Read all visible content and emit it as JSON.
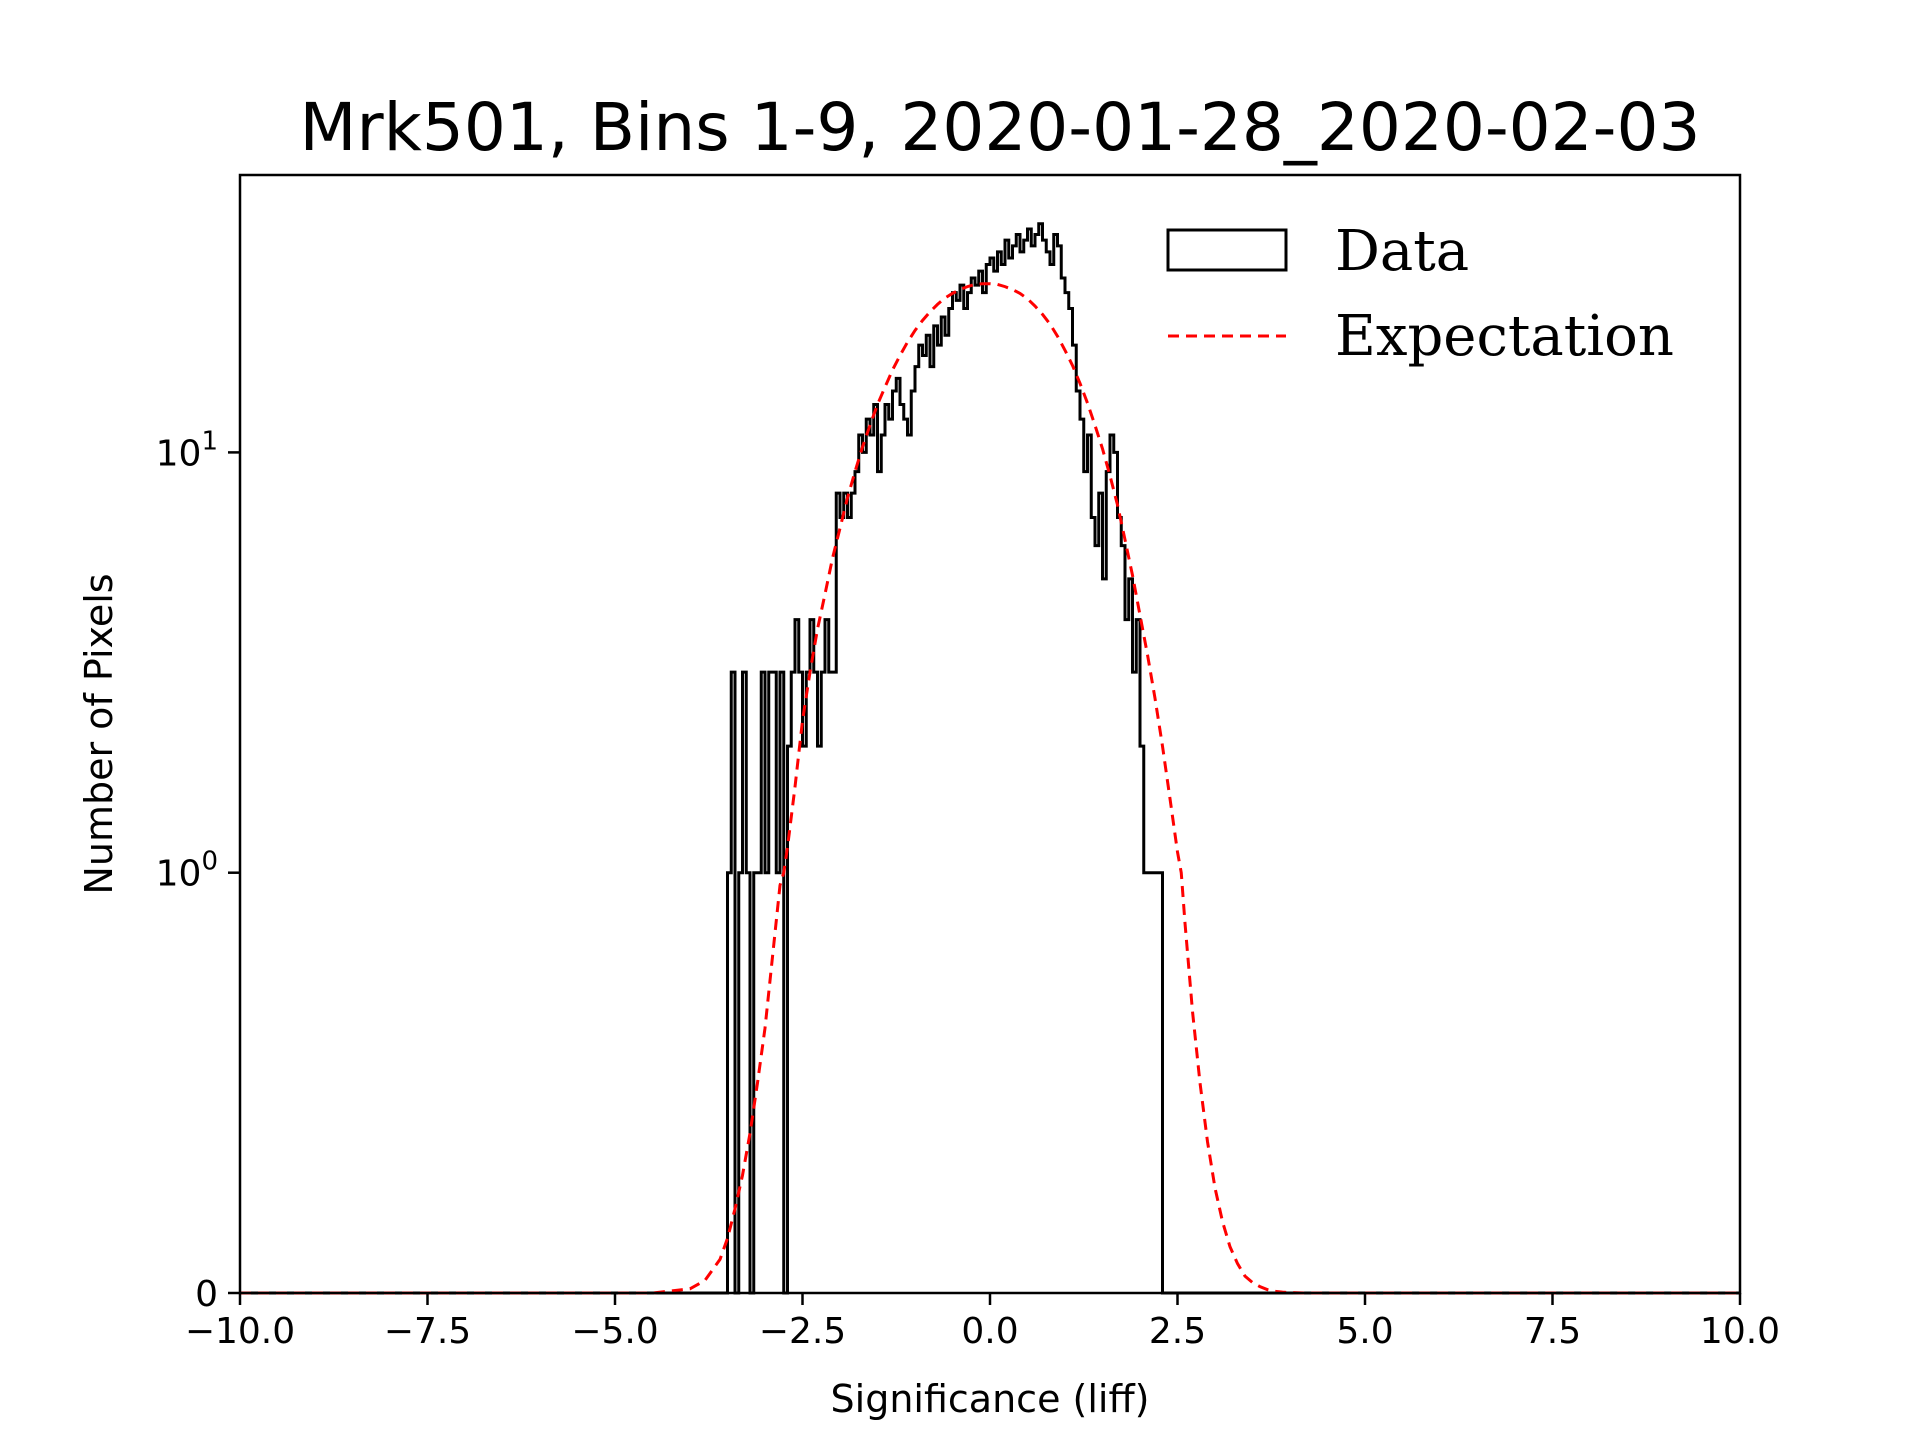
{
  "chart_data": {
    "type": "histogram",
    "title": "Mrk501, Bins 1-9, 2020-01-28_2020-02-03",
    "xlabel": "Significance (liff)",
    "ylabel": "Number of Pixels",
    "xlim": [
      -10.0,
      10.0
    ],
    "yscale": "symlog",
    "symlog_linthresh": 1,
    "xticks": [
      -10.0,
      -7.5,
      -5.0,
      -2.5,
      0.0,
      2.5,
      5.0,
      7.5,
      10.0
    ],
    "xtick_labels": [
      "−10.0",
      "−7.5",
      "−5.0",
      "−2.5",
      "0.0",
      "2.5",
      "5.0",
      "7.5",
      "10.0"
    ],
    "yticks": [
      {
        "value": 0,
        "base": "0",
        "exp": ""
      },
      {
        "value": 1,
        "base": "10",
        "exp": "0"
      },
      {
        "value": 10,
        "base": "10",
        "exp": "1"
      }
    ],
    "legend": {
      "position": "top-right",
      "entries": [
        {
          "label": "Data",
          "style": "step",
          "color": "#000000"
        },
        {
          "label": "Expectation",
          "style": "dashed",
          "color": "#ff0000"
        }
      ]
    },
    "series": [
      {
        "name": "Data",
        "type": "step",
        "color": "#000000",
        "bin_width": 0.05,
        "bin_edges_start": -3.55,
        "counts": [
          0,
          1,
          3,
          0,
          1,
          3,
          1,
          0,
          1,
          1,
          3,
          1,
          3,
          3,
          1,
          3,
          0,
          2,
          3,
          4,
          3,
          2,
          3,
          4,
          3,
          2,
          3,
          4,
          3,
          3,
          8,
          7,
          8,
          7,
          8,
          9,
          11,
          10,
          12,
          11,
          13,
          9,
          11,
          13,
          12,
          14,
          15,
          13,
          12,
          11,
          14,
          16,
          18,
          17,
          19,
          16,
          20,
          18,
          21,
          19,
          22,
          24,
          23,
          25,
          22,
          24,
          26,
          25,
          27,
          24,
          28,
          29,
          27,
          30,
          28,
          32,
          29,
          31,
          33,
          30,
          32,
          34,
          31,
          33,
          35,
          32,
          30,
          28,
          33,
          31,
          26,
          24,
          22,
          18,
          14,
          12,
          9,
          11,
          7,
          6,
          8,
          5,
          9,
          11,
          10,
          7,
          6,
          4,
          5,
          3,
          4,
          2,
          1,
          1,
          1,
          1,
          1,
          0
        ]
      },
      {
        "name": "Expectation",
        "type": "line",
        "style": "dashed",
        "color": "#ff0000",
        "x": [
          -10,
          -5,
          -4.5,
          -4,
          -3.8,
          -3.6,
          -3.5,
          -3.4,
          -3.3,
          -3.2,
          -3.1,
          -3.0,
          -2.9,
          -2.8,
          -2.75,
          -2.7,
          -2.6,
          -2.5,
          -2.4,
          -2.3,
          -2.2,
          -2.1,
          -2.0,
          -1.9,
          -1.8,
          -1.7,
          -1.6,
          -1.5,
          -1.4,
          -1.3,
          -1.2,
          -1.1,
          -1.0,
          -0.9,
          -0.8,
          -0.7,
          -0.6,
          -0.5,
          -0.4,
          -0.3,
          -0.2,
          -0.1,
          0.0,
          0.1,
          0.2,
          0.3,
          0.4,
          0.5,
          0.6,
          0.7,
          0.8,
          0.9,
          1.0,
          1.1,
          1.2,
          1.3,
          1.4,
          1.5,
          1.6,
          1.7,
          1.8,
          1.9,
          2.0,
          2.1,
          2.2,
          2.3,
          2.4,
          2.5,
          2.55,
          2.6,
          2.7,
          2.8,
          2.9,
          3.0,
          3.1,
          3.2,
          3.3,
          3.4,
          3.5,
          3.6,
          3.7,
          3.8,
          3.9,
          4.0,
          4.2,
          4.5,
          5.0,
          10.0
        ],
        "y": [
          0,
          0,
          0,
          0.01,
          0.03,
          0.08,
          0.13,
          0.2,
          0.28,
          0.38,
          0.5,
          0.63,
          0.8,
          0.97,
          1.0,
          1.15,
          1.6,
          2.3,
          3.0,
          3.8,
          4.6,
          5.6,
          6.6,
          7.8,
          9.0,
          10.3,
          11.6,
          13.0,
          14.3,
          15.7,
          17.0,
          18.3,
          19.5,
          20.6,
          21.6,
          22.5,
          23.3,
          23.9,
          24.4,
          24.8,
          25.1,
          25.2,
          25.2,
          25.1,
          24.8,
          24.4,
          23.9,
          23.2,
          22.3,
          21.3,
          20.2,
          18.9,
          17.5,
          16.1,
          14.6,
          13.1,
          11.6,
          10.2,
          8.8,
          7.5,
          6.2,
          5.1,
          4.1,
          3.3,
          2.6,
          2.0,
          1.5,
          1.12,
          1.0,
          0.88,
          0.67,
          0.5,
          0.36,
          0.25,
          0.17,
          0.11,
          0.07,
          0.04,
          0.025,
          0.015,
          0.008,
          0.004,
          0.002,
          0.001,
          0,
          0,
          0,
          0
        ]
      }
    ]
  }
}
